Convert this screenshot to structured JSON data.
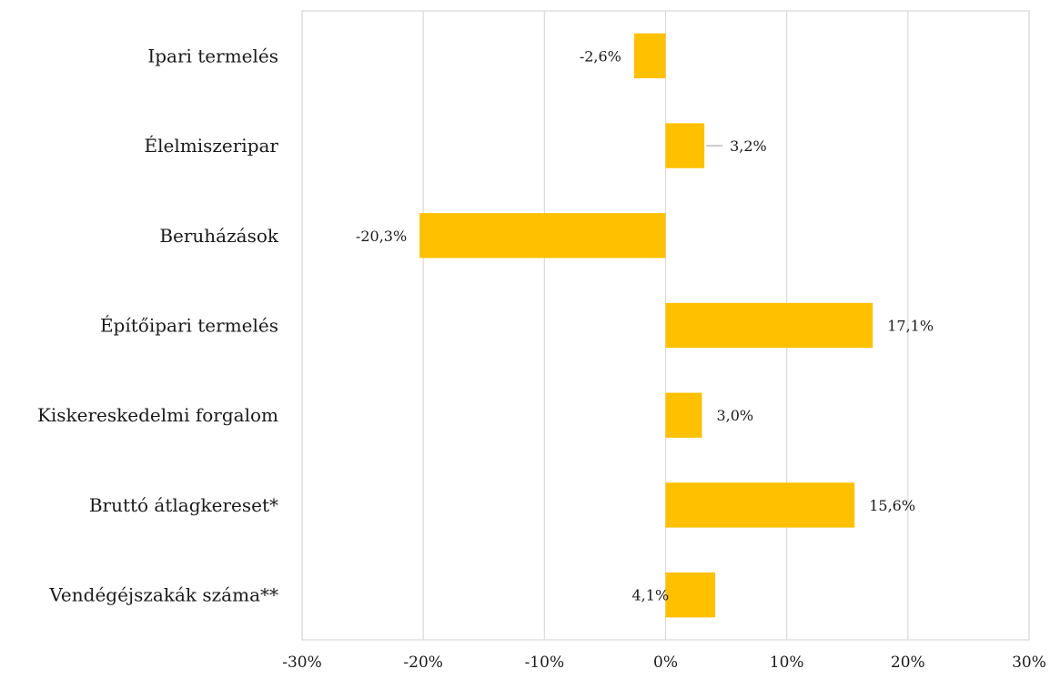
{
  "chart_data": {
    "type": "bar",
    "orientation": "horizontal",
    "categories": [
      "Ipari termelés",
      "Élelmiszeripar",
      "Beruházások",
      "Építőipari termelés",
      "Kiskereskedelmi forgalom",
      "Bruttó átlagkereset*",
      "Vendégéjszakák száma**"
    ],
    "values": [
      -2.6,
      3.2,
      -20.3,
      17.1,
      3.0,
      15.6,
      4.1
    ],
    "data_labels": [
      "-2,6%",
      "3,2%",
      "-20,3%",
      "17,1%",
      "3,0%",
      "15,6%",
      "4,1%"
    ],
    "xlim": [
      -30,
      30
    ],
    "x_ticks": [
      -30,
      -20,
      -10,
      0,
      10,
      20,
      30
    ],
    "x_tick_labels": [
      "-30%",
      "-20%",
      "-10%",
      "0%",
      "10%",
      "20%",
      "30%"
    ],
    "title": "",
    "xlabel": "",
    "ylabel": "",
    "grid": "vertical",
    "legend": "none",
    "colors": {
      "bar": "#FFC000",
      "grid": "#D9D9D9",
      "frame": "#D9D9D9",
      "leader": "#A6A6A6",
      "text": "#1a1a1a"
    }
  }
}
